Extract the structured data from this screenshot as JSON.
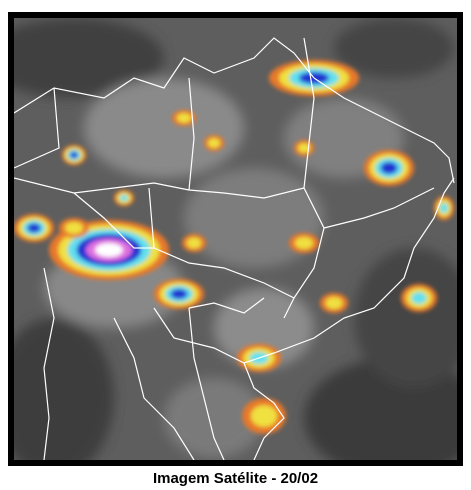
{
  "caption": "Imagem Satélite - 20/02"
}
